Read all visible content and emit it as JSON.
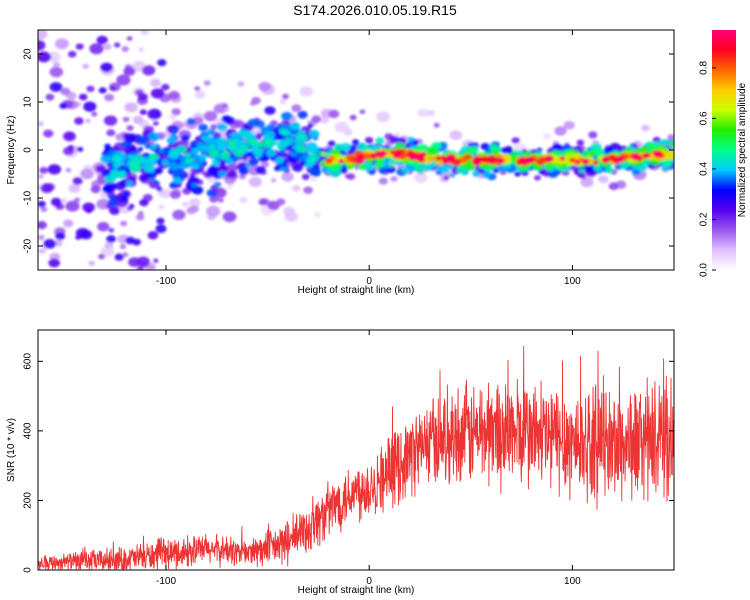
{
  "figure": {
    "title": "S174.2026.010.05.19.R15"
  },
  "chart_data": [
    {
      "type": "heatmap",
      "name": "spectrogram",
      "xlabel": "Height of straight line (km)",
      "ylabel": "Frequency (Hz)",
      "xlim": [
        -163,
        150
      ],
      "ylim": [
        -25,
        25
      ],
      "xticks": [
        -100,
        0,
        100
      ],
      "yticks": [
        -20,
        -10,
        0,
        10,
        20
      ],
      "xtick_labels": [
        "-100",
        "0",
        "100"
      ],
      "ytick_labels": [
        "-20",
        "-10",
        "0",
        "10",
        "20"
      ],
      "colorbar": {
        "label": "Normalized spectral amplitude",
        "range": [
          0.0,
          0.95
        ],
        "ticks": [
          0.0,
          0.2,
          0.4,
          0.6,
          0.8
        ],
        "tick_labels": [
          "0.0",
          "0.2",
          "0.4",
          "0.6",
          "0.8"
        ],
        "colormap": "rainbow",
        "colors": [
          "#ffffff",
          "#e0c0ff",
          "#9955ee",
          "#5500ee",
          "#0000ff",
          "#00ccff",
          "#00ff88",
          "#22ee00",
          "#ccff00",
          "#ffcc00",
          "#ff6600",
          "#ff0022",
          "#ff0077"
        ]
      },
      "ridge": {
        "x": [
          -130,
          -100,
          -80,
          -60,
          -40,
          -25,
          -20,
          -10,
          0,
          20,
          40,
          60,
          80,
          100,
          120,
          140,
          150
        ],
        "freq": [
          -4,
          -2,
          -1,
          1,
          2,
          0,
          -2,
          -2,
          -1,
          -1,
          -2,
          -2,
          -2,
          -2,
          -2,
          -1,
          -1
        ]
      }
    },
    {
      "type": "line",
      "name": "snr",
      "xlabel": "Height of straight line (km)",
      "ylabel": "SNR (10 * v/v)",
      "xlim": [
        -163,
        150
      ],
      "ylim": [
        0,
        690
      ],
      "xticks": [
        -100,
        0,
        100
      ],
      "yticks": [
        0,
        200,
        400,
        600
      ],
      "xtick_labels": [
        "-100",
        "0",
        "100"
      ],
      "ytick_labels": [
        "0",
        "200",
        "400",
        "600"
      ],
      "color": "#ee3333",
      "trend": {
        "x": [
          -163,
          -140,
          -120,
          -100,
          -80,
          -60,
          -50,
          -40,
          -30,
          -20,
          -10,
          0,
          10,
          20,
          30,
          40,
          50,
          60,
          80,
          100,
          120,
          140,
          150
        ],
        "y": [
          20,
          25,
          30,
          45,
          60,
          50,
          60,
          80,
          120,
          170,
          220,
          240,
          280,
          330,
          370,
          390,
          390,
          400,
          390,
          370,
          360,
          370,
          380
        ]
      },
      "noise_amplitude": {
        "x": [
          -163,
          -100,
          -60,
          -30,
          0,
          30,
          60,
          150
        ],
        "y": [
          25,
          55,
          50,
          90,
          110,
          150,
          190,
          200
        ]
      }
    }
  ]
}
